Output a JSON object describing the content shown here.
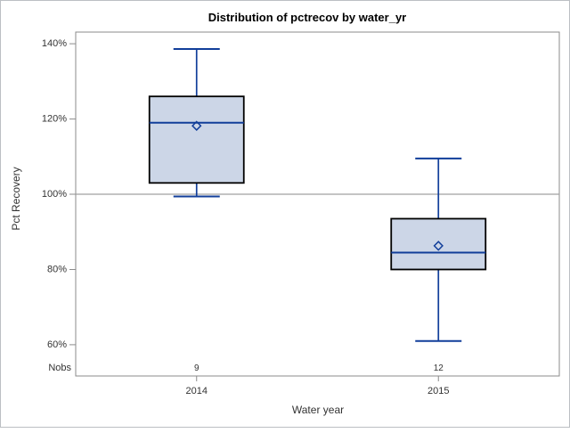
{
  "title": "Distribution of pctrecov by water_yr",
  "colors": {
    "box_fill": "#ccd6e7",
    "box_stroke": "#000000",
    "line_blue": "#113e9a",
    "axis_gray": "#8b8b8b",
    "ref_line_gray": "#a0a0a0",
    "text_gray": "#333333",
    "title_black": "#000000",
    "frame_border": "#bcbfc3"
  },
  "chart_data": {
    "type": "box",
    "title": "Distribution of pctrecov by water_yr",
    "xlabel": "Water year",
    "ylabel": "Pct Recovery",
    "categories": [
      "2014",
      "2015"
    ],
    "nobs_label": "Nobs",
    "nobs": [
      9,
      12
    ],
    "y_ticks": [
      {
        "value": 140,
        "label": "140%"
      },
      {
        "value": 120,
        "label": "120%"
      },
      {
        "value": 100,
        "label": "100%"
      },
      {
        "value": 80,
        "label": "80%"
      },
      {
        "value": 60,
        "label": "60%"
      }
    ],
    "ylim": [
      51.7,
      143.1
    ],
    "reference_line": 100,
    "grid": false,
    "legend": false,
    "series": [
      {
        "category": "2014",
        "n": 9,
        "min": 99.4,
        "q1": 103.0,
        "median": 119.0,
        "q3": 126.0,
        "max": 138.6,
        "mean": 118.2
      },
      {
        "category": "2015",
        "n": 12,
        "min": 61.0,
        "q1": 80.0,
        "median": 84.5,
        "q3": 93.5,
        "max": 109.5,
        "mean": 86.3
      }
    ]
  }
}
